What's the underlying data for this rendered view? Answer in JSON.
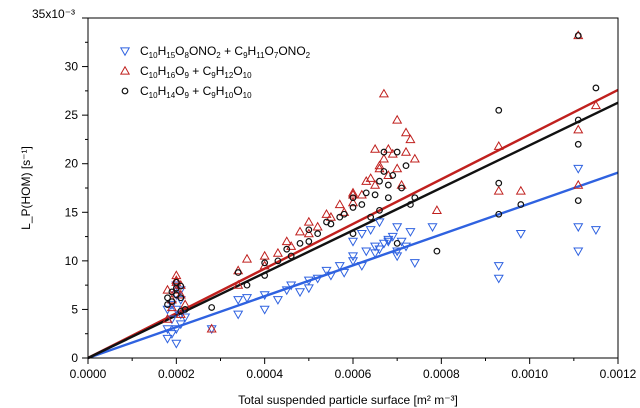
{
  "chart_data": {
    "type": "scatter",
    "xlabel": "Total suspended particle surface [m² m⁻³]",
    "ylabel": "L_P(HOM) [s⁻¹]",
    "y_multiplier_label": "35x10⁻³",
    "xlim": [
      0,
      0.0012
    ],
    "ylim": [
      0,
      0.035
    ],
    "x_ticks": [
      0.0,
      0.0002,
      0.0004,
      0.0006,
      0.0008,
      0.001,
      0.0012
    ],
    "x_tick_labels": [
      "0.0000",
      "0.0002",
      "0.0004",
      "0.0006",
      "0.0008",
      "0.0010",
      "0.0012"
    ],
    "y_ticks": [
      0,
      0.005,
      0.01,
      0.015,
      0.02,
      0.025,
      0.03
    ],
    "y_tick_labels": [
      "0",
      "5",
      "10",
      "15",
      "20",
      "25",
      "30"
    ],
    "grid": false,
    "legend_position": "top-left",
    "series": [
      {
        "name": "C10H15O8ONO2 + C9H11O7ONO2",
        "marker": "triangle-down",
        "color": "#2f62e0",
        "fit": {
          "slope": 15.9,
          "intercept": 0
        },
        "x": [
          0.00018,
          0.00018,
          0.00019,
          0.00019,
          0.0002,
          0.0002,
          0.00021,
          0.00021,
          0.00019,
          0.0002,
          0.0002,
          0.00021,
          0.00022,
          0.00018,
          0.0002,
          0.00021,
          0.00028,
          0.00034,
          0.00034,
          0.00036,
          0.0004,
          0.0004,
          0.00043,
          0.00045,
          0.00046,
          0.00048,
          0.0005,
          0.0005,
          0.00052,
          0.00054,
          0.00055,
          0.00057,
          0.00058,
          0.0006,
          0.0006,
          0.00062,
          0.00063,
          0.00065,
          0.00065,
          0.00066,
          0.00067,
          0.00068,
          0.00069,
          0.0007,
          0.0007,
          0.00071,
          0.00073,
          0.00074,
          0.0006,
          0.00062,
          0.00064,
          0.00066,
          0.00068,
          0.0007,
          0.00072,
          0.00078,
          0.00093,
          0.00093,
          0.00098,
          0.00111,
          0.00111,
          0.00115,
          0.00111
        ],
        "y": [
          0.002,
          0.003,
          0.0025,
          0.004,
          0.003,
          0.005,
          0.0035,
          0.0045,
          0.0055,
          0.0065,
          0.0015,
          0.006,
          0.0042,
          0.005,
          0.0075,
          0.007,
          0.003,
          0.0045,
          0.006,
          0.0062,
          0.005,
          0.0065,
          0.006,
          0.007,
          0.0075,
          0.0068,
          0.0072,
          0.008,
          0.0082,
          0.009,
          0.0085,
          0.0095,
          0.0088,
          0.01,
          0.0105,
          0.0095,
          0.011,
          0.0108,
          0.0115,
          0.0112,
          0.0118,
          0.012,
          0.0125,
          0.0105,
          0.011,
          0.012,
          0.013,
          0.0098,
          0.012,
          0.0128,
          0.0132,
          0.014,
          0.0122,
          0.0135,
          0.0115,
          0.0135,
          0.0082,
          0.0095,
          0.0128,
          0.011,
          0.0135,
          0.0132,
          0.0195
        ]
      },
      {
        "name": "C10H16O9 + C9H12O10",
        "marker": "triangle-up",
        "color": "#c0201e",
        "fit": {
          "slope": 23.0,
          "intercept": 0
        },
        "x": [
          0.00018,
          0.00019,
          0.0002,
          0.0002,
          0.00021,
          0.00021,
          0.00019,
          0.0002,
          0.00022,
          0.00018,
          0.00021,
          0.0002,
          0.00028,
          0.00034,
          0.00034,
          0.00036,
          0.0004,
          0.0004,
          0.00043,
          0.00045,
          0.00046,
          0.00048,
          0.0005,
          0.0005,
          0.00052,
          0.00054,
          0.00055,
          0.00057,
          0.00058,
          0.0006,
          0.0006,
          0.00062,
          0.00063,
          0.00065,
          0.00066,
          0.00067,
          0.00068,
          0.00069,
          0.0007,
          0.00071,
          0.00072,
          0.00073,
          0.00074,
          0.0006,
          0.00064,
          0.00066,
          0.00068,
          0.0007,
          0.00072,
          0.00079,
          0.00093,
          0.00093,
          0.00098,
          0.00111,
          0.00111,
          0.00115,
          0.00111,
          0.00067,
          0.00065
        ],
        "y": [
          0.004,
          0.006,
          0.007,
          0.0085,
          0.0065,
          0.0075,
          0.0052,
          0.008,
          0.0055,
          0.007,
          0.0045,
          0.0078,
          0.003,
          0.009,
          0.0075,
          0.0102,
          0.0095,
          0.0105,
          0.0108,
          0.012,
          0.0115,
          0.013,
          0.0128,
          0.014,
          0.0135,
          0.0148,
          0.0145,
          0.0158,
          0.015,
          0.016,
          0.017,
          0.0168,
          0.0182,
          0.0178,
          0.0195,
          0.0205,
          0.0188,
          0.021,
          0.0195,
          0.0178,
          0.0232,
          0.0225,
          0.0205,
          0.0168,
          0.0185,
          0.0198,
          0.0215,
          0.0245,
          0.0212,
          0.0152,
          0.0218,
          0.0172,
          0.0172,
          0.0332,
          0.0235,
          0.026,
          0.0178,
          0.0272,
          0.0215
        ]
      },
      {
        "name": "C10H14O9 + C9H10O10",
        "marker": "circle",
        "color": "#111111",
        "fit": {
          "slope": 21.9,
          "intercept": 0
        },
        "x": [
          0.00018,
          0.00019,
          0.0002,
          0.0002,
          0.00021,
          0.00021,
          0.00019,
          0.0002,
          0.00022,
          0.00018,
          0.00021,
          0.00028,
          0.00034,
          0.00036,
          0.0004,
          0.0004,
          0.00043,
          0.00045,
          0.00046,
          0.00048,
          0.0005,
          0.0005,
          0.00052,
          0.00054,
          0.00055,
          0.00057,
          0.00058,
          0.0006,
          0.0006,
          0.00062,
          0.00063,
          0.00065,
          0.00066,
          0.00067,
          0.00068,
          0.00069,
          0.0007,
          0.00071,
          0.00072,
          0.00073,
          0.00074,
          0.0006,
          0.00064,
          0.00066,
          0.00068,
          0.0007,
          0.00079,
          0.00093,
          0.00093,
          0.00093,
          0.00098,
          0.00111,
          0.00111,
          0.00111,
          0.00115,
          0.00111,
          0.00067
        ],
        "y": [
          0.0055,
          0.0068,
          0.0072,
          0.0078,
          0.0062,
          0.0074,
          0.0058,
          0.0065,
          0.005,
          0.0062,
          0.0048,
          0.0052,
          0.0088,
          0.0075,
          0.0085,
          0.0098,
          0.01,
          0.0112,
          0.0105,
          0.0118,
          0.012,
          0.0132,
          0.0128,
          0.014,
          0.0138,
          0.0145,
          0.0148,
          0.0155,
          0.0165,
          0.0158,
          0.017,
          0.0168,
          0.0182,
          0.0192,
          0.0178,
          0.0188,
          0.0212,
          0.0175,
          0.0198,
          0.0158,
          0.0165,
          0.0128,
          0.0145,
          0.0152,
          0.0165,
          0.0118,
          0.011,
          0.0255,
          0.018,
          0.0148,
          0.0158,
          0.0332,
          0.022,
          0.0245,
          0.0278,
          0.0162,
          0.0212
        ]
      }
    ]
  }
}
